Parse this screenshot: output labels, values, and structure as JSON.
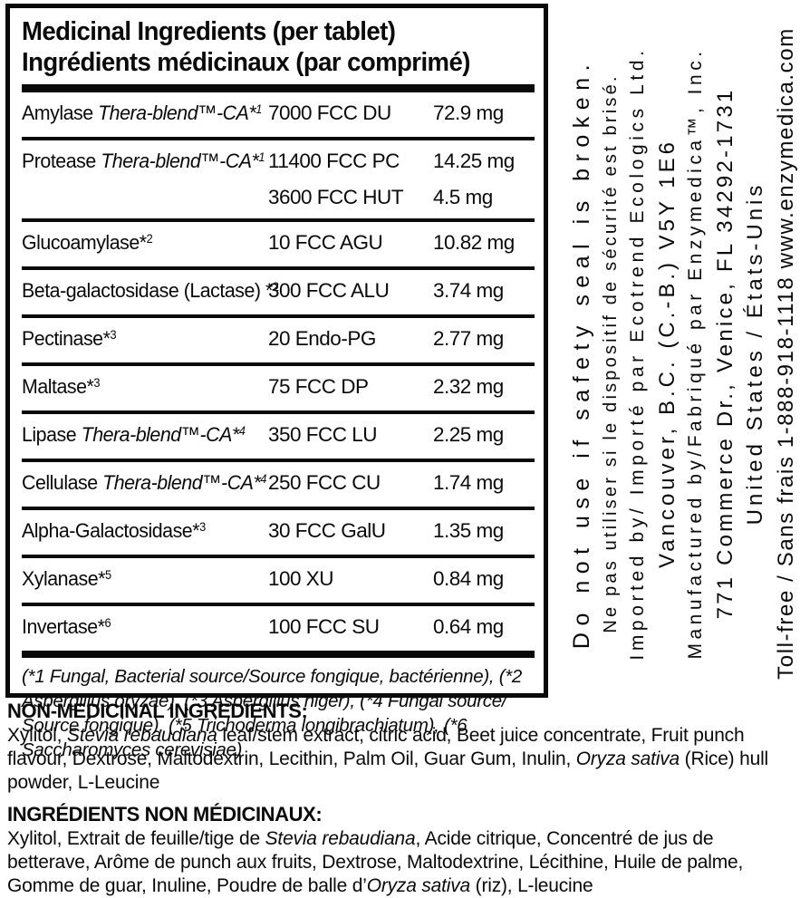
{
  "colors": {
    "ink": "#0a0a0a",
    "background": "#ffffff"
  },
  "label": {
    "table": {
      "title_en": "Medicinal Ingredients (per tablet)",
      "title_fr": "Ingrédients médicinaux (par comprimé)",
      "rows": [
        {
          "name": [
            {
              "t": "Amylase "
            },
            {
              "t": "Thera-blend™-CA*",
              "s": "i"
            },
            {
              "t": "1",
              "s": "isup"
            }
          ],
          "lines": [
            {
              "units": "7000 FCC DU",
              "amount": "72.9 mg"
            }
          ]
        },
        {
          "name": [
            {
              "t": "Protease "
            },
            {
              "t": "Thera-blend™-CA*",
              "s": "i"
            },
            {
              "t": "1",
              "s": "isup"
            }
          ],
          "lines": [
            {
              "units": "11400 FCC PC",
              "amount": "14.25 mg"
            },
            {
              "units": "3600 FCC HUT",
              "amount": "4.5 mg"
            }
          ]
        },
        {
          "name": [
            {
              "t": "Glucoamylase*"
            },
            {
              "t": "2",
              "s": "sup"
            }
          ],
          "lines": [
            {
              "units": "10 FCC AGU",
              "amount": "10.82 mg"
            }
          ]
        },
        {
          "name": [
            {
              "t": "Beta-galactosidase (Lactase) *"
            },
            {
              "t": "2",
              "s": "sup"
            }
          ],
          "lines": [
            {
              "units": "300 FCC ALU",
              "amount": "3.74 mg"
            }
          ]
        },
        {
          "name": [
            {
              "t": "Pectinase*"
            },
            {
              "t": "3",
              "s": "sup"
            }
          ],
          "lines": [
            {
              "units": "20 Endo-PG",
              "amount": "2.77 mg"
            }
          ]
        },
        {
          "name": [
            {
              "t": "Maltase*"
            },
            {
              "t": "3",
              "s": "sup"
            }
          ],
          "lines": [
            {
              "units": "75 FCC DP",
              "amount": "2.32 mg"
            }
          ]
        },
        {
          "name": [
            {
              "t": "Lipase "
            },
            {
              "t": "Thera-blend™-CA*",
              "s": "i"
            },
            {
              "t": "4",
              "s": "isup"
            }
          ],
          "lines": [
            {
              "units": "350 FCC LU",
              "amount": "2.25 mg"
            }
          ]
        },
        {
          "name": [
            {
              "t": "Cellulase "
            },
            {
              "t": "Thera-blend™-CA*",
              "s": "i"
            },
            {
              "t": "4",
              "s": "isup"
            }
          ],
          "lines": [
            {
              "units": "250 FCC CU",
              "amount": "1.74 mg"
            }
          ]
        },
        {
          "name": [
            {
              "t": "Alpha-Galactosidase*"
            },
            {
              "t": "3",
              "s": "sup"
            }
          ],
          "lines": [
            {
              "units": "30 FCC GalU",
              "amount": "1.35 mg"
            }
          ]
        },
        {
          "name": [
            {
              "t": "Xylanase*"
            },
            {
              "t": "5",
              "s": "sup"
            }
          ],
          "lines": [
            {
              "units": "100 XU",
              "amount": "0.84 mg"
            }
          ]
        },
        {
          "name": [
            {
              "t": "Invertase*"
            },
            {
              "t": "6",
              "s": "sup"
            }
          ],
          "lines": [
            {
              "units": "100 FCC SU",
              "amount": "0.64 mg"
            }
          ]
        }
      ],
      "footnote": [
        {
          "t": "(*1 Fungal, Bacterial source/Source fongique, bactérienne), (*2 Aspergillus oryzae), (*3 Aspergillus niger), (*4 Fungal source/ Source fongique), (*5 Trichoderma longibrachiatum), (*6 Saccharomyces cerevisiae)",
          "s": "i"
        }
      ]
    },
    "non_medicinal": {
      "heading_en": "NON-MEDICINAL INGREDIENTS:",
      "body_en": [
        {
          "t": "Xylitol, "
        },
        {
          "t": "Stevia rebaudiana",
          "s": "i"
        },
        {
          "t": " leaf/stem extract, citric acid, Beet juice concentrate, Fruit punch flavour, Dextrose, Maltodextrin, Lecithin, Palm Oil, Guar Gum, Inulin, "
        },
        {
          "t": "Oryza sativa",
          "s": "i"
        },
        {
          "t": " (Rice) hull powder, L-Leucine"
        }
      ],
      "heading_fr": "INGRÉDIENTS NON MÉDICINAUX:",
      "body_fr": [
        {
          "t": "Xylitol, Extrait de feuille/tige de "
        },
        {
          "t": "Stevia rebaudiana",
          "s": "i"
        },
        {
          "t": ", Acide citrique, Concentré de jus de betterave, Arôme de punch aux fruits, Dextrose, Maltodextrine, Lécithine, Huile de palme, Gomme de guar, Inuline, Poudre de balle d’"
        },
        {
          "t": "Oryza sativa",
          "s": "i"
        },
        {
          "t": " (riz), L-leucine"
        }
      ]
    },
    "side_panel": {
      "lines": [
        "Do not use if safety seal is broken.",
        "Ne pas utiliser si le dispositif de sécurité est brisé.",
        "Imported by/ Importé par Ecotrend Ecologics Ltd.",
        "Vancouver, B.C. (C.-B.) V5Y 1E6",
        "Manufactured by/Fabriqué par Enzymedica™, Inc.",
        "771 Commerce Dr., Venice, FL 34292-1731",
        "United States / États-Unis",
        "Toll-free / Sans frais 1-888-918-1118 www.enzymedica.com"
      ]
    }
  }
}
